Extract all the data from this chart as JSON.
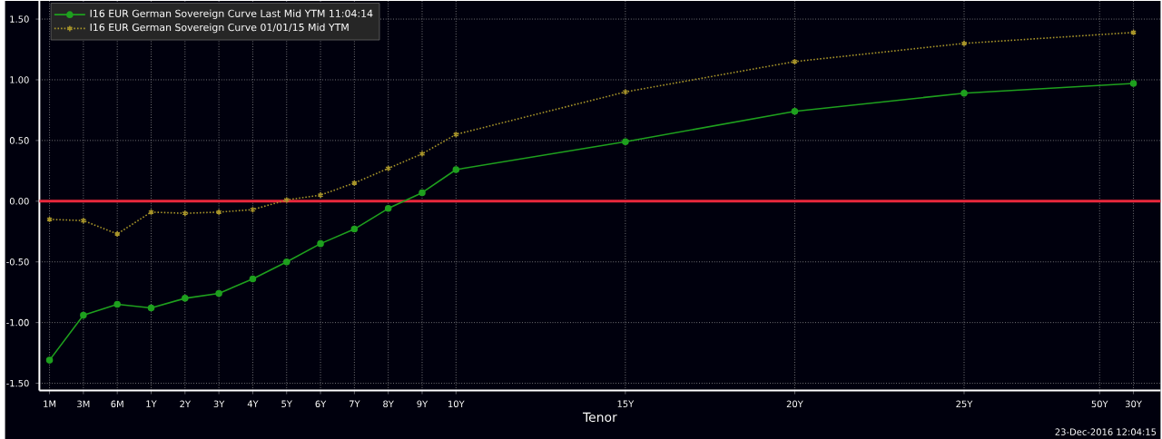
{
  "chart_data": {
    "type": "line",
    "xlabel": "Tenor",
    "categories": [
      "1M",
      "3M",
      "6M",
      "1Y",
      "2Y",
      "3Y",
      "4Y",
      "5Y",
      "6Y",
      "7Y",
      "8Y",
      "9Y",
      "10Y",
      null,
      null,
      null,
      null,
      "15Y",
      null,
      null,
      null,
      null,
      "20Y",
      null,
      null,
      null,
      null,
      "25Y",
      null,
      null,
      null,
      "50Y",
      "30Y"
    ],
    "series": [
      {
        "name": "I16 EUR German Sovereign Curve Last Mid YTM 11:04:14",
        "color": "#1ea01e",
        "marker": "circle",
        "line_style": "solid",
        "values": [
          -1.31,
          -0.94,
          -0.85,
          -0.88,
          -0.8,
          -0.76,
          -0.64,
          -0.5,
          -0.35,
          -0.23,
          -0.06,
          0.07,
          0.26,
          null,
          null,
          null,
          null,
          0.49,
          null,
          null,
          null,
          null,
          0.74,
          null,
          null,
          null,
          null,
          0.89,
          null,
          null,
          null,
          null,
          0.97
        ]
      },
      {
        "name": "I16 EUR German Sovereign Curve 01/01/15 Mid YTM",
        "color": "#a8952a",
        "marker": "cross",
        "line_style": "dotted",
        "values": [
          -0.15,
          -0.16,
          -0.27,
          -0.09,
          -0.1,
          -0.09,
          -0.07,
          0.01,
          0.05,
          0.15,
          0.27,
          0.39,
          0.55,
          null,
          null,
          null,
          null,
          0.9,
          null,
          null,
          null,
          null,
          1.15,
          null,
          null,
          null,
          null,
          1.3,
          null,
          null,
          null,
          null,
          1.39
        ]
      }
    ],
    "ylim": [
      -1.56,
      1.65
    ],
    "yticks": [
      {
        "value": -1.5,
        "label": "-1.50"
      },
      {
        "value": -1.0,
        "label": "-1.00"
      },
      {
        "value": -0.5,
        "label": "-0.50"
      },
      {
        "value": 0,
        "label": "0.00"
      },
      {
        "value": 0.5,
        "label": "0.50"
      },
      {
        "value": 1.0,
        "label": "1.00"
      },
      {
        "value": 1.5,
        "label": "1.50"
      }
    ],
    "ref_lines": [
      {
        "axis": "y",
        "value": 0,
        "color": "#e8283c"
      }
    ],
    "grid": true,
    "legend": "top left",
    "annotations": [
      "23-Dec-2016 12:04:15"
    ]
  }
}
